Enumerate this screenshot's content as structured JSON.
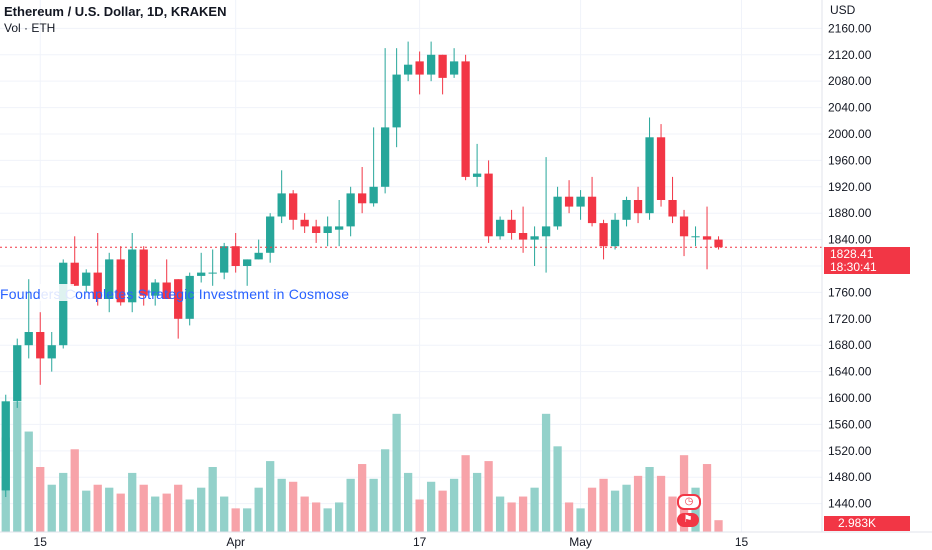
{
  "header": {
    "title": "Ethereum / U.S. Dollar, 1D, KRAKEN",
    "volume_label": "Vol · ETH",
    "currency": "USD"
  },
  "news_banner": "Founders Completes Strategic Investment in Cosmose",
  "price_badge": {
    "price": "1828.41",
    "countdown": "18:30:41",
    "color": "#f23645"
  },
  "volume_badge": "2.983K",
  "indicator_icons": [
    "clock-icon",
    "flag-icon"
  ],
  "colors": {
    "up": "#26a69a",
    "down": "#f23645",
    "up_volume": "#93d1ca",
    "down_volume": "#f7a3a9",
    "grid": "#f0f3fa",
    "text": "#131722",
    "price_line": "#f23645"
  },
  "chart_data": {
    "type": "candlestick",
    "title": "Ethereum / U.S. Dollar, 1D, KRAKEN",
    "y_ticks": [
      1440,
      1480,
      1520,
      1560,
      1600,
      1640,
      1680,
      1720,
      1760,
      1800,
      1840,
      1880,
      1920,
      1960,
      2000,
      2040,
      2080,
      2120,
      2160
    ],
    "y_tick_labels": [
      "1440.00",
      "1480.00",
      "1520.00",
      "1560.00",
      "1600.00",
      "1640.00",
      "1680.00",
      "1720.00",
      "1760.00",
      "1800.00",
      "1840.00",
      "1880.00",
      "1920.00",
      "1960.00",
      "2000.00",
      "2040.00",
      "2080.00",
      "2120.00",
      "2160.00"
    ],
    "ylim": [
      1397,
      2203
    ],
    "x_ticks": [
      {
        "label": "15",
        "index": 3
      },
      {
        "label": "Apr",
        "index": 20
      },
      {
        "label": "17",
        "index": 36
      },
      {
        "label": "May",
        "index": 50
      },
      {
        "label": "15",
        "index": 64
      }
    ],
    "x_index_range": [
      -0.5,
      71
    ],
    "last_price": 1828.41,
    "grid": true,
    "candles": [
      {
        "date": "Mar 12",
        "o": 1460,
        "h": 1605,
        "l": 1450,
        "c": 1595,
        "v": 32
      },
      {
        "date": "Mar 13",
        "o": 1595,
        "h": 1690,
        "l": 1585,
        "c": 1680,
        "v": 44
      },
      {
        "date": "Mar 14",
        "o": 1680,
        "h": 1780,
        "l": 1660,
        "c": 1700,
        "v": 34
      },
      {
        "date": "Mar 15",
        "o": 1700,
        "h": 1730,
        "l": 1620,
        "c": 1660,
        "v": 22
      },
      {
        "date": "Mar 16",
        "o": 1660,
        "h": 1700,
        "l": 1640,
        "c": 1680,
        "v": 16
      },
      {
        "date": "Mar 17",
        "o": 1680,
        "h": 1810,
        "l": 1675,
        "c": 1805,
        "v": 20
      },
      {
        "date": "Mar 18",
        "o": 1805,
        "h": 1845,
        "l": 1770,
        "c": 1770,
        "v": 28
      },
      {
        "date": "Mar 19",
        "o": 1770,
        "h": 1795,
        "l": 1760,
        "c": 1790,
        "v": 14
      },
      {
        "date": "Mar 20",
        "o": 1790,
        "h": 1850,
        "l": 1740,
        "c": 1750,
        "v": 16
      },
      {
        "date": "Mar 21",
        "o": 1750,
        "h": 1820,
        "l": 1730,
        "c": 1810,
        "v": 15
      },
      {
        "date": "Mar 22",
        "o": 1810,
        "h": 1830,
        "l": 1740,
        "c": 1745,
        "v": 13
      },
      {
        "date": "Mar 23",
        "o": 1745,
        "h": 1850,
        "l": 1730,
        "c": 1825,
        "v": 20
      },
      {
        "date": "Mar 24",
        "o": 1825,
        "h": 1830,
        "l": 1740,
        "c": 1755,
        "v": 16
      },
      {
        "date": "Mar 25",
        "o": 1755,
        "h": 1780,
        "l": 1740,
        "c": 1775,
        "v": 12
      },
      {
        "date": "Mar 26",
        "o": 1775,
        "h": 1810,
        "l": 1750,
        "c": 1750,
        "v": 13
      },
      {
        "date": "Mar 27",
        "o": 1780,
        "h": 1780,
        "l": 1690,
        "c": 1720,
        "v": 16
      },
      {
        "date": "Mar 28",
        "o": 1720,
        "h": 1790,
        "l": 1710,
        "c": 1785,
        "v": 11
      },
      {
        "date": "Mar 29",
        "o": 1785,
        "h": 1820,
        "l": 1775,
        "c": 1790,
        "v": 15
      },
      {
        "date": "Mar 30",
        "o": 1790,
        "h": 1825,
        "l": 1770,
        "c": 1790,
        "v": 22
      },
      {
        "date": "Mar 31",
        "o": 1790,
        "h": 1835,
        "l": 1780,
        "c": 1830,
        "v": 12
      },
      {
        "date": "Apr 01",
        "o": 1830,
        "h": 1850,
        "l": 1790,
        "c": 1800,
        "v": 8
      },
      {
        "date": "Apr 02",
        "o": 1800,
        "h": 1810,
        "l": 1770,
        "c": 1810,
        "v": 8
      },
      {
        "date": "Apr 03",
        "o": 1810,
        "h": 1840,
        "l": 1810,
        "c": 1820,
        "v": 15
      },
      {
        "date": "Apr 04",
        "o": 1820,
        "h": 1880,
        "l": 1805,
        "c": 1875,
        "v": 24
      },
      {
        "date": "Apr 05",
        "o": 1875,
        "h": 1945,
        "l": 1865,
        "c": 1910,
        "v": 18
      },
      {
        "date": "Apr 06",
        "o": 1910,
        "h": 1915,
        "l": 1855,
        "c": 1870,
        "v": 17
      },
      {
        "date": "Apr 07",
        "o": 1870,
        "h": 1880,
        "l": 1850,
        "c": 1860,
        "v": 12
      },
      {
        "date": "Apr 08",
        "o": 1860,
        "h": 1870,
        "l": 1835,
        "c": 1850,
        "v": 10
      },
      {
        "date": "Apr 09",
        "o": 1850,
        "h": 1875,
        "l": 1830,
        "c": 1860,
        "v": 8
      },
      {
        "date": "Apr 10",
        "o": 1855,
        "h": 1900,
        "l": 1830,
        "c": 1860,
        "v": 10
      },
      {
        "date": "Apr 11",
        "o": 1860,
        "h": 1920,
        "l": 1845,
        "c": 1910,
        "v": 18
      },
      {
        "date": "Apr 12",
        "o": 1910,
        "h": 1950,
        "l": 1880,
        "c": 1895,
        "v": 23
      },
      {
        "date": "Apr 13",
        "o": 1895,
        "h": 2010,
        "l": 1890,
        "c": 1920,
        "v": 18
      },
      {
        "date": "Apr 14",
        "o": 1920,
        "h": 2130,
        "l": 1910,
        "c": 2010,
        "v": 28
      },
      {
        "date": "Apr 15",
        "o": 2010,
        "h": 2130,
        "l": 1980,
        "c": 2090,
        "v": 40
      },
      {
        "date": "Apr 16",
        "o": 2090,
        "h": 2140,
        "l": 2080,
        "c": 2105,
        "v": 20
      },
      {
        "date": "Apr 17",
        "o": 2110,
        "h": 2125,
        "l": 2060,
        "c": 2090,
        "v": 11
      },
      {
        "date": "Apr 18",
        "o": 2090,
        "h": 2140,
        "l": 2080,
        "c": 2120,
        "v": 17
      },
      {
        "date": "Apr 19",
        "o": 2120,
        "h": 2120,
        "l": 2060,
        "c": 2085,
        "v": 14
      },
      {
        "date": "Apr 20",
        "o": 2090,
        "h": 2130,
        "l": 2085,
        "c": 2110,
        "v": 18
      },
      {
        "date": "Apr 21",
        "o": 2110,
        "h": 2120,
        "l": 1930,
        "c": 1935,
        "v": 26
      },
      {
        "date": "Apr 22",
        "o": 1935,
        "h": 1985,
        "l": 1920,
        "c": 1940,
        "v": 20
      },
      {
        "date": "Apr 23",
        "o": 1940,
        "h": 1960,
        "l": 1835,
        "c": 1845,
        "v": 24
      },
      {
        "date": "Apr 24",
        "o": 1845,
        "h": 1875,
        "l": 1840,
        "c": 1870,
        "v": 12
      },
      {
        "date": "Apr 25",
        "o": 1870,
        "h": 1885,
        "l": 1840,
        "c": 1850,
        "v": 10
      },
      {
        "date": "Apr 26",
        "o": 1850,
        "h": 1890,
        "l": 1820,
        "c": 1840,
        "v": 12
      },
      {
        "date": "Apr 27",
        "o": 1840,
        "h": 1860,
        "l": 1800,
        "c": 1845,
        "v": 15
      },
      {
        "date": "Apr 28",
        "o": 1845,
        "h": 1965,
        "l": 1790,
        "c": 1860,
        "v": 40
      },
      {
        "date": "Apr 29",
        "o": 1860,
        "h": 1920,
        "l": 1855,
        "c": 1905,
        "v": 29
      },
      {
        "date": "Apr 30",
        "o": 1905,
        "h": 1930,
        "l": 1880,
        "c": 1890,
        "v": 10
      },
      {
        "date": "May 01",
        "o": 1890,
        "h": 1915,
        "l": 1870,
        "c": 1905,
        "v": 8
      },
      {
        "date": "May 02",
        "o": 1905,
        "h": 1935,
        "l": 1860,
        "c": 1865,
        "v": 15
      },
      {
        "date": "May 03",
        "o": 1865,
        "h": 1870,
        "l": 1810,
        "c": 1830,
        "v": 18
      },
      {
        "date": "May 04",
        "o": 1830,
        "h": 1880,
        "l": 1825,
        "c": 1870,
        "v": 14
      },
      {
        "date": "May 05",
        "o": 1870,
        "h": 1905,
        "l": 1860,
        "c": 1900,
        "v": 16
      },
      {
        "date": "May 06",
        "o": 1900,
        "h": 1920,
        "l": 1865,
        "c": 1880,
        "v": 19
      },
      {
        "date": "May 07",
        "o": 1880,
        "h": 2025,
        "l": 1870,
        "c": 1995,
        "v": 22
      },
      {
        "date": "May 08",
        "o": 1995,
        "h": 2015,
        "l": 1890,
        "c": 1900,
        "v": 19
      },
      {
        "date": "May 09",
        "o": 1900,
        "h": 1935,
        "l": 1865,
        "c": 1875,
        "v": 12
      },
      {
        "date": "May 10",
        "o": 1875,
        "h": 1885,
        "l": 1815,
        "c": 1845,
        "v": 26
      },
      {
        "date": "May 11",
        "o": 1845,
        "h": 1860,
        "l": 1830,
        "c": 1845,
        "v": 15
      },
      {
        "date": "May 12",
        "o": 1845,
        "h": 1890,
        "l": 1795,
        "c": 1840,
        "v": 23
      },
      {
        "date": "May 13",
        "o": 1840,
        "h": 1845,
        "l": 1825,
        "c": 1828.41,
        "v": 4
      }
    ],
    "volume": {
      "label": "Vol · ETH",
      "last": "2.983K",
      "note": "volume values are relative bar heights"
    }
  }
}
